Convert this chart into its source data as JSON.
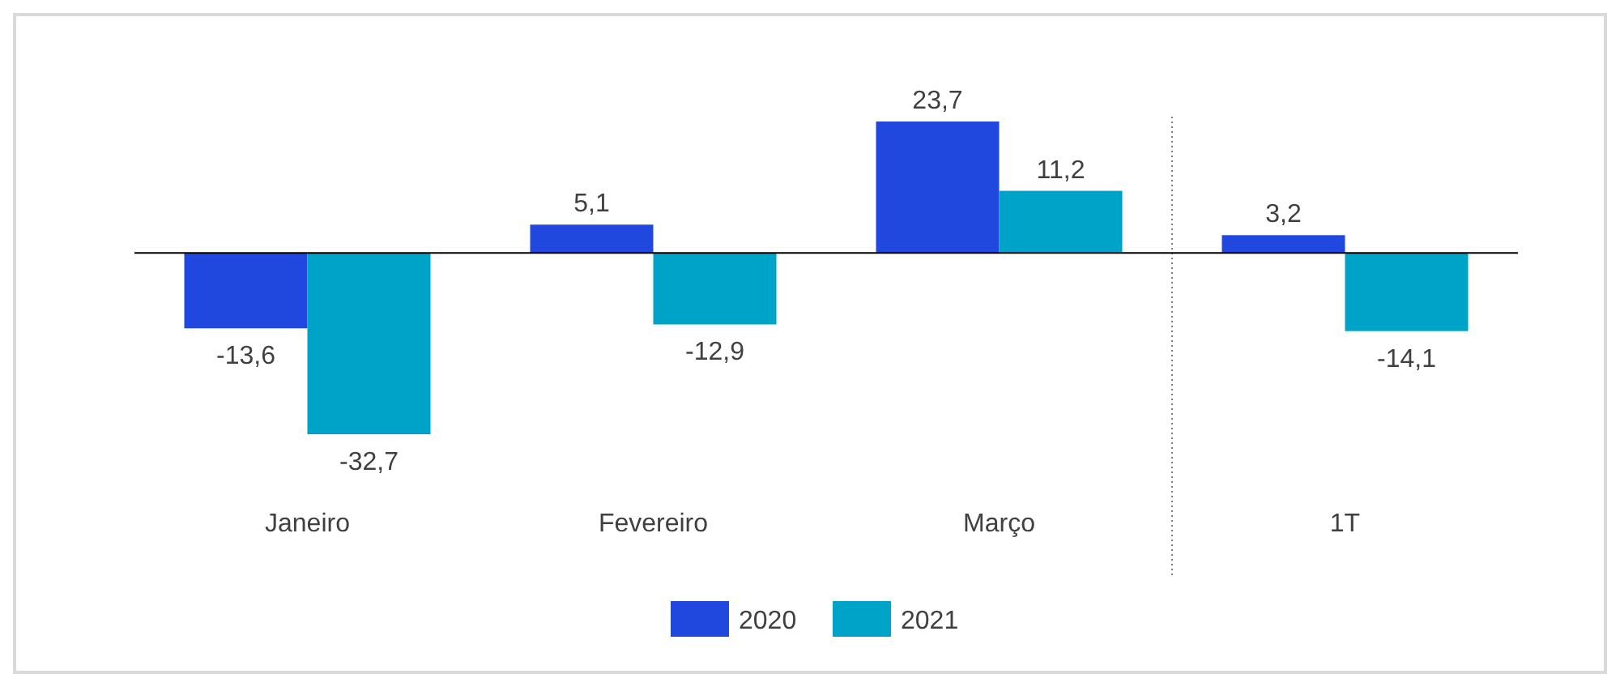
{
  "chart_data": {
    "type": "bar",
    "categories": [
      "Janeiro",
      "Fevereiro",
      "Março",
      "1T"
    ],
    "series": [
      {
        "name": "2020",
        "color": "#2148de",
        "values": [
          -13.6,
          5.1,
          23.7,
          3.2
        ],
        "value_labels": [
          "-13,6",
          "5,1",
          "23,7",
          "3,2"
        ]
      },
      {
        "name": "2021",
        "color": "#00a3c8",
        "values": [
          -32.7,
          -12.9,
          11.2,
          -14.1
        ],
        "value_labels": [
          "-32,7",
          "-12,9",
          "11,2",
          "-14,1"
        ]
      }
    ],
    "legend": "bottom"
  }
}
